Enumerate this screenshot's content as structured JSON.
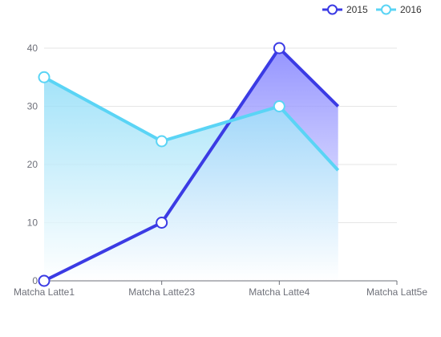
{
  "chart_data": {
    "type": "area",
    "categories": [
      "Matcha Latte1",
      "Matcha Latte23",
      "Matcha Latte4",
      "Matcha Latt5e"
    ],
    "series": [
      {
        "name": "2015",
        "values": [
          0,
          10,
          40,
          30
        ],
        "color": "#3b3be4",
        "fill_top": "#7b7bff",
        "fill_bottom": "#ffffff"
      },
      {
        "name": "2016",
        "values": [
          35,
          24,
          30,
          19
        ],
        "color": "#5ad4f5",
        "fill_top": "#8ddcf7",
        "fill_bottom": "#ffffff"
      }
    ],
    "ylim": [
      0,
      40
    ],
    "yticks": [
      0,
      10,
      20,
      30,
      40
    ],
    "grid": true,
    "legend_position": "top-right",
    "title": "",
    "xlabel": "",
    "ylabel": ""
  }
}
